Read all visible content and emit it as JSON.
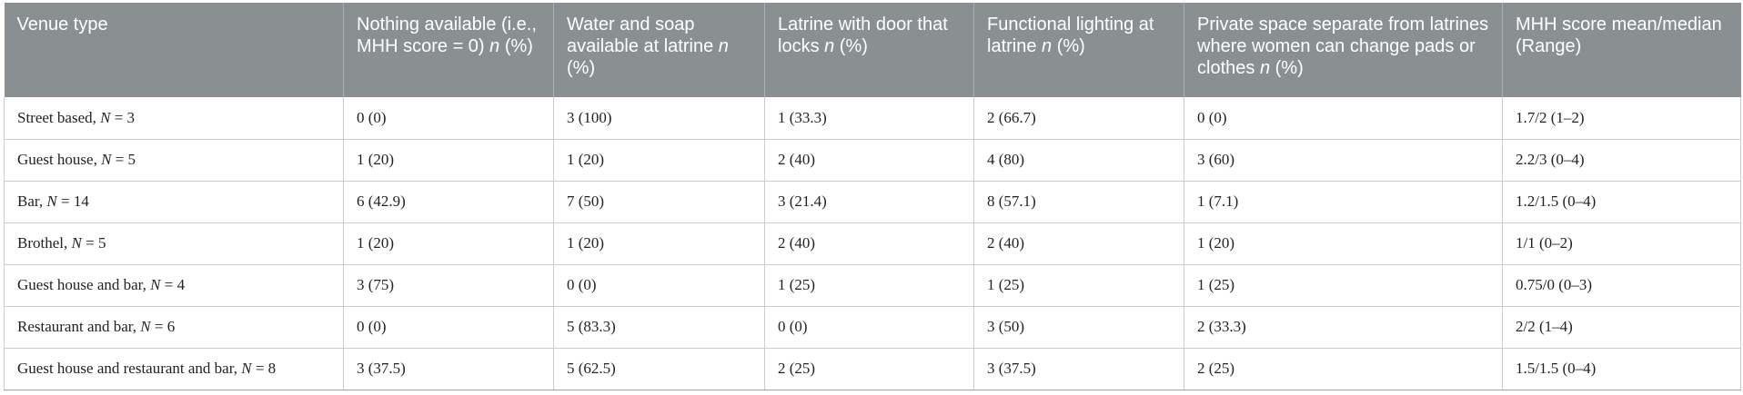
{
  "table": {
    "headers": [
      {
        "text": "Venue type",
        "italic_suffix": "",
        "after": ""
      },
      {
        "text": "Nothing available (i.e., MHH score = 0) ",
        "italic_suffix": "n",
        "after": " (%)"
      },
      {
        "text": "Water and soap available at latrine ",
        "italic_suffix": "n",
        "after": " (%)"
      },
      {
        "text": "Latrine with door that locks ",
        "italic_suffix": "n",
        "after": " (%)"
      },
      {
        "text": "Functional lighting at latrine ",
        "italic_suffix": "n",
        "after": " (%)"
      },
      {
        "text": "Private space separate from latrines where women can change pads or clothes ",
        "italic_suffix": "n",
        "after": " (%)"
      },
      {
        "text": "MHH score mean/median (Range)",
        "italic_suffix": "",
        "after": ""
      }
    ],
    "rows": [
      {
        "venue": "Street based, ",
        "n": "3",
        "cells": [
          "0 (0)",
          "3 (100)",
          "1 (33.3)",
          "2 (66.7)",
          "0 (0)",
          "1.7/2 (1–2)"
        ]
      },
      {
        "venue": "Guest house, ",
        "n": "5",
        "cells": [
          "1 (20)",
          "1 (20)",
          "2 (40)",
          "4 (80)",
          "3 (60)",
          "2.2/3 (0–4)"
        ]
      },
      {
        "venue": "Bar, ",
        "n": "14",
        "cells": [
          "6 (42.9)",
          "7 (50)",
          "3 (21.4)",
          "8 (57.1)",
          "1 (7.1)",
          "1.2/1.5 (0–4)"
        ]
      },
      {
        "venue": "Brothel, ",
        "n": "5",
        "cells": [
          "1 (20)",
          "1 (20)",
          "2 (40)",
          "2 (40)",
          "1 (20)",
          "1/1 (0–2)"
        ]
      },
      {
        "venue": "Guest house and bar, ",
        "n": "4",
        "cells": [
          "3 (75)",
          "0 (0)",
          "1 (25)",
          "1 (25)",
          "1 (25)",
          "0.75/0 (0–3)"
        ]
      },
      {
        "venue": "Restaurant and bar, ",
        "n": "6",
        "cells": [
          "0 (0)",
          "5 (83.3)",
          "0 (0)",
          "3 (50)",
          "2 (33.3)",
          "2/2 (1–4)"
        ]
      },
      {
        "venue": "Guest house and restaurant and bar, ",
        "n": "8",
        "cells": [
          "3 (37.5)",
          "5 (62.5)",
          "2 (25)",
          "3 (37.5)",
          "2 (25)",
          "1.5/1.5 (0–4)"
        ]
      }
    ]
  }
}
